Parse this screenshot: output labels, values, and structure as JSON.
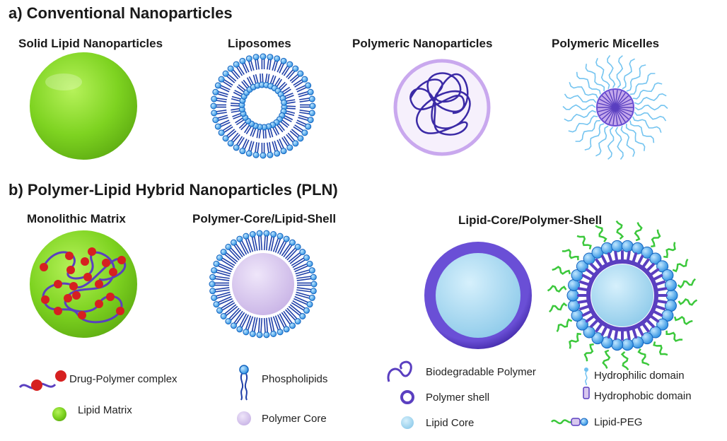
{
  "section_a": {
    "title": "a) Conventional Nanoparticles",
    "labels": {
      "sln": "Solid Lipid Nanoparticles",
      "liposomes": "Liposomes",
      "polymeric_np": "Polymeric Nanoparticles",
      "micelles": "Polymeric Micelles"
    }
  },
  "section_b": {
    "title": "b) Polymer-Lipid Hybrid Nanoparticles (PLN)",
    "labels": {
      "monolithic": "Monolithic Matrix",
      "core_shell": "Polymer-Core/Lipid-Shell",
      "lipid_core": "Lipid-Core/Polymer-Shell"
    }
  },
  "legend": {
    "drug_polymer": "Drug-Polymer  complex",
    "lipid_matrix": "Lipid Matrix",
    "phospholipids": "Phospholipids",
    "polymer_core": "Polymer  Core",
    "biodegradable_polymer": "Biodegradable  Polymer",
    "polymer_shell": "Polymer  shell",
    "lipid_core": "Lipid Core",
    "hydrophilic": "Hydrophilic  domain",
    "hydrophobic": "Hydrophobic  domain",
    "lipid_peg": "Lipid-PEG"
  },
  "colors": {
    "lipid_green": "#7ed321",
    "phospholipid_blue": "#1565c0",
    "polymer_purple": "#5a3fc0",
    "drug_red": "#d62020",
    "lipid_core_blue": "#a8d8f0",
    "polymer_core_lilac": "#d8c8ee",
    "peg_green": "#3cc83c"
  }
}
